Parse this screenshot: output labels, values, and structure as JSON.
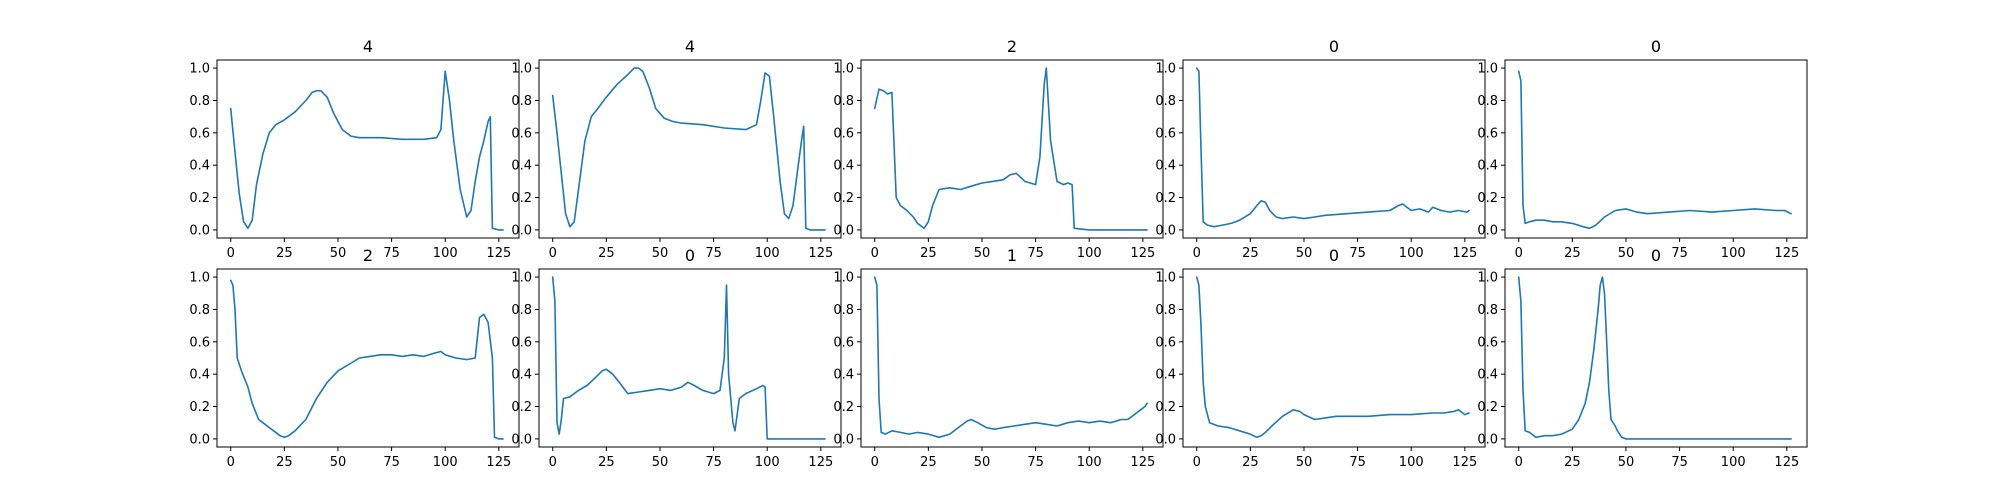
{
  "colors": {
    "line": "#1f77b4",
    "axes": "#000000",
    "background": "#ffffff"
  },
  "chart_data": [
    {
      "type": "line",
      "title": "4",
      "xlabel": "",
      "ylabel": "",
      "xlim": [
        0,
        128
      ],
      "ylim": [
        0,
        1.0
      ],
      "xticks": [
        0,
        25,
        50,
        75,
        100,
        125
      ],
      "yticks": [
        0.0,
        0.2,
        0.4,
        0.6,
        0.8,
        1.0
      ],
      "grid": false,
      "x": [
        0,
        2,
        4,
        6,
        8,
        10,
        12,
        15,
        18,
        21,
        25,
        30,
        35,
        38,
        40,
        42,
        45,
        48,
        52,
        56,
        60,
        70,
        80,
        90,
        96,
        98,
        100,
        102,
        104,
        107,
        110,
        112,
        114,
        116,
        118,
        120,
        121,
        122,
        125,
        127
      ],
      "y": [
        0.75,
        0.48,
        0.22,
        0.05,
        0.01,
        0.06,
        0.28,
        0.47,
        0.6,
        0.65,
        0.68,
        0.73,
        0.8,
        0.85,
        0.86,
        0.86,
        0.82,
        0.72,
        0.62,
        0.58,
        0.57,
        0.57,
        0.56,
        0.56,
        0.57,
        0.62,
        0.98,
        0.8,
        0.55,
        0.25,
        0.08,
        0.12,
        0.3,
        0.45,
        0.55,
        0.67,
        0.7,
        0.01,
        0.0,
        0.0
      ]
    },
    {
      "type": "line",
      "title": "4",
      "xlabel": "",
      "ylabel": "",
      "xlim": [
        0,
        128
      ],
      "ylim": [
        0,
        1.0
      ],
      "xticks": [
        0,
        25,
        50,
        75,
        100,
        125
      ],
      "yticks": [
        0.0,
        0.2,
        0.4,
        0.6,
        0.8,
        1.0
      ],
      "grid": false,
      "x": [
        0,
        2,
        4,
        6,
        8,
        10,
        12,
        15,
        18,
        21,
        25,
        30,
        35,
        38,
        40,
        42,
        45,
        48,
        52,
        56,
        60,
        70,
        80,
        90,
        95,
        97,
        99,
        101,
        103,
        106,
        108,
        110,
        112,
        114,
        116,
        117,
        118,
        120,
        125,
        127
      ],
      "y": [
        0.83,
        0.6,
        0.35,
        0.1,
        0.02,
        0.05,
        0.25,
        0.55,
        0.7,
        0.75,
        0.82,
        0.9,
        0.96,
        1.0,
        1.0,
        0.98,
        0.88,
        0.75,
        0.69,
        0.67,
        0.66,
        0.65,
        0.63,
        0.62,
        0.65,
        0.8,
        0.97,
        0.95,
        0.7,
        0.3,
        0.1,
        0.07,
        0.15,
        0.35,
        0.55,
        0.64,
        0.01,
        0.0,
        0.0,
        0.0
      ]
    },
    {
      "type": "line",
      "title": "2",
      "xlabel": "",
      "ylabel": "",
      "xlim": [
        0,
        128
      ],
      "ylim": [
        0,
        1.0
      ],
      "xticks": [
        0,
        25,
        50,
        75,
        100,
        125
      ],
      "yticks": [
        0.0,
        0.2,
        0.4,
        0.6,
        0.8,
        1.0
      ],
      "grid": false,
      "x": [
        0,
        2,
        4,
        6,
        8,
        10,
        12,
        15,
        18,
        20,
        23,
        25,
        27,
        30,
        35,
        40,
        45,
        50,
        55,
        60,
        63,
        66,
        70,
        75,
        77,
        79,
        80,
        82,
        85,
        88,
        90,
        92,
        93,
        100,
        110,
        120,
        127
      ],
      "y": [
        0.75,
        0.87,
        0.86,
        0.84,
        0.85,
        0.2,
        0.15,
        0.12,
        0.08,
        0.04,
        0.01,
        0.05,
        0.15,
        0.25,
        0.26,
        0.25,
        0.27,
        0.29,
        0.3,
        0.31,
        0.34,
        0.35,
        0.3,
        0.28,
        0.45,
        0.9,
        1.0,
        0.55,
        0.3,
        0.28,
        0.29,
        0.28,
        0.01,
        0.0,
        0.0,
        0.0,
        0.0
      ]
    },
    {
      "type": "line",
      "title": "0",
      "xlabel": "",
      "ylabel": "",
      "xlim": [
        0,
        128
      ],
      "ylim": [
        0,
        1.0
      ],
      "xticks": [
        0,
        25,
        50,
        75,
        100,
        125
      ],
      "yticks": [
        0.0,
        0.2,
        0.4,
        0.6,
        0.8,
        1.0
      ],
      "grid": false,
      "x": [
        0,
        1,
        2,
        3,
        5,
        8,
        12,
        16,
        20,
        25,
        28,
        30,
        32,
        34,
        37,
        40,
        45,
        50,
        55,
        60,
        70,
        80,
        90,
        94,
        96,
        98,
        100,
        104,
        108,
        110,
        114,
        118,
        122,
        126,
        127
      ],
      "y": [
        1.0,
        0.98,
        0.5,
        0.05,
        0.03,
        0.02,
        0.03,
        0.04,
        0.06,
        0.1,
        0.15,
        0.18,
        0.17,
        0.12,
        0.08,
        0.07,
        0.08,
        0.07,
        0.08,
        0.09,
        0.1,
        0.11,
        0.12,
        0.15,
        0.16,
        0.14,
        0.12,
        0.13,
        0.11,
        0.14,
        0.12,
        0.11,
        0.12,
        0.11,
        0.12
      ]
    },
    {
      "type": "line",
      "title": "0",
      "xlabel": "",
      "ylabel": "",
      "xlim": [
        0,
        128
      ],
      "ylim": [
        0,
        1.0
      ],
      "xticks": [
        0,
        25,
        50,
        75,
        100,
        125
      ],
      "yticks": [
        0.0,
        0.2,
        0.4,
        0.6,
        0.8,
        1.0
      ],
      "grid": false,
      "x": [
        0,
        1,
        2,
        3,
        5,
        8,
        12,
        16,
        20,
        25,
        30,
        33,
        36,
        40,
        45,
        50,
        55,
        60,
        70,
        80,
        90,
        100,
        110,
        120,
        124,
        127
      ],
      "y": [
        0.98,
        0.92,
        0.15,
        0.04,
        0.05,
        0.06,
        0.06,
        0.05,
        0.05,
        0.04,
        0.02,
        0.01,
        0.03,
        0.08,
        0.12,
        0.13,
        0.11,
        0.1,
        0.11,
        0.12,
        0.11,
        0.12,
        0.13,
        0.12,
        0.12,
        0.1
      ]
    },
    {
      "type": "line",
      "title": "2",
      "xlabel": "",
      "ylabel": "",
      "xlim": [
        0,
        128
      ],
      "ylim": [
        0,
        1.0
      ],
      "xticks": [
        0,
        25,
        50,
        75,
        100,
        125
      ],
      "yticks": [
        0.0,
        0.2,
        0.4,
        0.6,
        0.8,
        1.0
      ],
      "grid": false,
      "x": [
        0,
        1,
        2,
        3,
        5,
        8,
        10,
        13,
        15,
        18,
        20,
        23,
        25,
        27,
        30,
        35,
        40,
        45,
        50,
        55,
        60,
        65,
        70,
        75,
        80,
        85,
        90,
        95,
        98,
        100,
        105,
        110,
        114,
        116,
        118,
        120,
        122,
        123,
        125,
        127
      ],
      "y": [
        0.98,
        0.95,
        0.8,
        0.5,
        0.42,
        0.32,
        0.22,
        0.12,
        0.1,
        0.07,
        0.05,
        0.02,
        0.01,
        0.02,
        0.05,
        0.12,
        0.25,
        0.35,
        0.42,
        0.46,
        0.5,
        0.51,
        0.52,
        0.52,
        0.51,
        0.52,
        0.51,
        0.53,
        0.54,
        0.52,
        0.5,
        0.49,
        0.5,
        0.75,
        0.77,
        0.72,
        0.5,
        0.01,
        0.0,
        0.0
      ]
    },
    {
      "type": "line",
      "title": "0",
      "xlabel": "",
      "ylabel": "",
      "xlim": [
        0,
        128
      ],
      "ylim": [
        0,
        1.0
      ],
      "xticks": [
        0,
        25,
        50,
        75,
        100,
        125
      ],
      "yticks": [
        0.0,
        0.2,
        0.4,
        0.6,
        0.8,
        1.0
      ],
      "grid": false,
      "x": [
        0,
        1,
        2,
        3,
        4,
        5,
        8,
        12,
        16,
        20,
        23,
        25,
        28,
        31,
        35,
        40,
        45,
        50,
        55,
        60,
        63,
        66,
        70,
        75,
        78,
        80,
        81,
        82,
        84,
        85,
        87,
        90,
        95,
        98,
        99,
        100,
        110,
        120,
        127
      ],
      "y": [
        1.0,
        0.85,
        0.1,
        0.03,
        0.12,
        0.25,
        0.26,
        0.3,
        0.33,
        0.38,
        0.42,
        0.43,
        0.4,
        0.35,
        0.28,
        0.29,
        0.3,
        0.31,
        0.3,
        0.32,
        0.35,
        0.33,
        0.3,
        0.28,
        0.3,
        0.5,
        0.95,
        0.4,
        0.1,
        0.05,
        0.25,
        0.28,
        0.31,
        0.33,
        0.32,
        0.0,
        0.0,
        0.0,
        0.0
      ]
    },
    {
      "type": "line",
      "title": "1",
      "xlabel": "",
      "ylabel": "",
      "xlim": [
        0,
        128
      ],
      "ylim": [
        0,
        1.0
      ],
      "xticks": [
        0,
        25,
        50,
        75,
        100,
        125
      ],
      "yticks": [
        0.0,
        0.2,
        0.4,
        0.6,
        0.8,
        1.0
      ],
      "grid": false,
      "x": [
        0,
        1,
        2,
        3,
        5,
        8,
        12,
        16,
        20,
        25,
        30,
        35,
        40,
        43,
        45,
        48,
        52,
        56,
        60,
        65,
        70,
        75,
        80,
        85,
        90,
        95,
        100,
        105,
        110,
        115,
        118,
        120,
        122,
        124,
        126,
        127
      ],
      "y": [
        1.0,
        0.95,
        0.25,
        0.04,
        0.03,
        0.05,
        0.04,
        0.03,
        0.04,
        0.03,
        0.01,
        0.03,
        0.08,
        0.11,
        0.12,
        0.1,
        0.07,
        0.06,
        0.07,
        0.08,
        0.09,
        0.1,
        0.09,
        0.08,
        0.1,
        0.11,
        0.1,
        0.11,
        0.1,
        0.12,
        0.12,
        0.14,
        0.16,
        0.18,
        0.2,
        0.22
      ]
    },
    {
      "type": "line",
      "title": "0",
      "xlabel": "",
      "ylabel": "",
      "xlim": [
        0,
        128
      ],
      "ylim": [
        0,
        1.0
      ],
      "xticks": [
        0,
        25,
        50,
        75,
        100,
        125
      ],
      "yticks": [
        0.0,
        0.2,
        0.4,
        0.6,
        0.8,
        1.0
      ],
      "grid": false,
      "x": [
        0,
        1,
        2,
        3,
        4,
        6,
        10,
        15,
        20,
        25,
        28,
        30,
        32,
        35,
        40,
        45,
        48,
        50,
        55,
        60,
        65,
        70,
        80,
        90,
        100,
        110,
        115,
        120,
        122,
        125,
        127
      ],
      "y": [
        1.0,
        0.95,
        0.7,
        0.35,
        0.2,
        0.1,
        0.08,
        0.07,
        0.05,
        0.03,
        0.01,
        0.02,
        0.04,
        0.08,
        0.14,
        0.18,
        0.17,
        0.15,
        0.12,
        0.13,
        0.14,
        0.14,
        0.14,
        0.15,
        0.15,
        0.16,
        0.16,
        0.17,
        0.18,
        0.15,
        0.16
      ]
    },
    {
      "type": "line",
      "title": "0",
      "xlabel": "",
      "ylabel": "",
      "xlim": [
        0,
        128
      ],
      "ylim": [
        0,
        1.0
      ],
      "xticks": [
        0,
        25,
        50,
        75,
        100,
        125
      ],
      "yticks": [
        0.0,
        0.2,
        0.4,
        0.6,
        0.8,
        1.0
      ],
      "grid": false,
      "x": [
        0,
        1,
        2,
        3,
        5,
        8,
        12,
        16,
        20,
        25,
        28,
        31,
        33,
        35,
        37,
        38,
        39,
        40,
        41,
        42,
        43,
        45,
        46,
        48,
        50,
        60,
        70,
        80,
        90,
        100,
        110,
        120,
        125,
        127
      ],
      "y": [
        1.0,
        0.85,
        0.3,
        0.05,
        0.04,
        0.01,
        0.02,
        0.02,
        0.03,
        0.06,
        0.12,
        0.22,
        0.35,
        0.55,
        0.8,
        0.95,
        1.0,
        0.9,
        0.6,
        0.3,
        0.12,
        0.08,
        0.05,
        0.01,
        0.0,
        0.0,
        0.0,
        0.0,
        0.0,
        0.0,
        0.0,
        0.0,
        0.0,
        0.0
      ]
    }
  ]
}
